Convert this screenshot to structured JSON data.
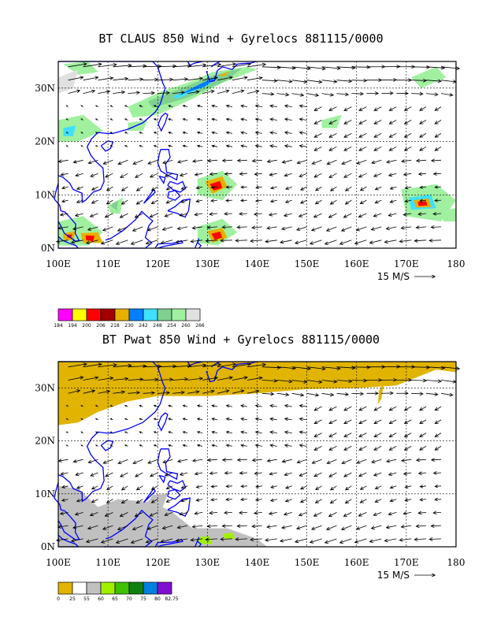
{
  "panels": [
    {
      "title": "BT CLAUS 850 Wind + Gyrelocs 881115/0000",
      "lat_ticks": [
        "30N",
        "20N",
        "10N",
        "0N"
      ],
      "lon_ticks": [
        "100E",
        "110E",
        "120E",
        "130E",
        "140E",
        "150E",
        "160E",
        "170E",
        "180"
      ],
      "scale_label": "15 M/S",
      "colorbar": {
        "labels": [
          "184",
          "194",
          "200",
          "206",
          "218",
          "230",
          "242",
          "248",
          "254",
          "260",
          "266"
        ],
        "colors": [
          "#ff00ff",
          "#ffff00",
          "#ff0000",
          "#a00000",
          "#e6b000",
          "#0080ff",
          "#40e0ff",
          "#80d090",
          "#a0f0a0",
          "#e0e0e0"
        ]
      },
      "field": "cloud"
    },
    {
      "title": "BT Pwat 850 Wind + Gyrelocs 881115/0000",
      "lat_ticks": [
        "30N",
        "20N",
        "10N",
        "0N"
      ],
      "lon_ticks": [
        "100E",
        "110E",
        "120E",
        "130E",
        "140E",
        "150E",
        "160E",
        "170E",
        "180"
      ],
      "scale_label": "15 M/S",
      "colorbar": {
        "labels": [
          "0",
          "25",
          "55",
          "60",
          "65",
          "70",
          "75",
          "80",
          "82.75"
        ],
        "colors": [
          "#e0b400",
          "#ffffff",
          "#c0c0c0",
          "#a0f000",
          "#40c000",
          "#108010",
          "#0080e0",
          "#8010d0"
        ]
      },
      "field": "pwat"
    }
  ],
  "colors": {
    "coast": "#0000ff",
    "grid": "#000000"
  }
}
